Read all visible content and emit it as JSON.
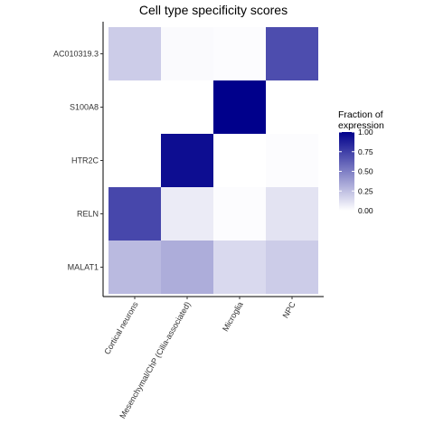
{
  "chart_data": {
    "type": "heatmap",
    "title": "Cell type specificity scores",
    "xlabel": "",
    "ylabel": "",
    "x_categories": [
      "Cortical neurons",
      "Mesenchymal/ChP (Cilia-associated)",
      "Microglia",
      "NPC"
    ],
    "y_categories": [
      "AC010319.3",
      "S100A8",
      "HTR2C",
      "RELN",
      "MALAT1"
    ],
    "values": [
      [
        0.2,
        0.02,
        0.01,
        0.7
      ],
      [
        0.0,
        0.0,
        1.0,
        0.0
      ],
      [
        0.0,
        0.95,
        0.0,
        0.01
      ],
      [
        0.72,
        0.08,
        0.01,
        0.11
      ],
      [
        0.27,
        0.32,
        0.15,
        0.2
      ]
    ],
    "legend": {
      "title_lines": [
        "Fraction of",
        "expression"
      ],
      "ticks": [
        1.0,
        0.75,
        0.5,
        0.25,
        0.0
      ],
      "tick_labels": [
        "1.00",
        "0.75",
        "0.50",
        "0.25",
        "0.00"
      ],
      "position": "right"
    },
    "color_low": "#ffffff",
    "color_high": "#00008b",
    "grid": false
  }
}
